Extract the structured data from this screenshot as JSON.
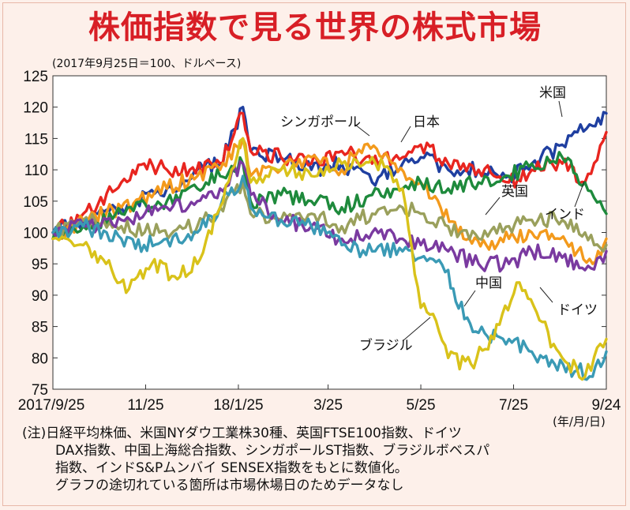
{
  "title": "株価指数で見る世界の株式市場",
  "subtitle": "(2017年9月25日＝100、ドルベース)",
  "unit_label": "(年/月/日)",
  "notes": [
    "(注)日経平均株価、米国NYダウ工業株30種、英国FTSE100指数、ドイツ",
    "DAX指数、中国上海総合指数、シンガポールST指数、ブラジルボベスパ",
    "指数、インドS&Pムンバイ SENSEX指数をもとに数値化。",
    "グラフの途切れている箇所は市場休場日のためデータなし"
  ],
  "chart_data": {
    "type": "line",
    "title": "株価指数で見る世界の株式市場",
    "xlabel": "",
    "ylabel": "",
    "ylim": [
      75,
      125
    ],
    "yticks": [
      75,
      80,
      85,
      90,
      95,
      100,
      105,
      110,
      115,
      120,
      125
    ],
    "x_tick_labels": [
      "2017/9/25",
      "11/25",
      "18/1/25",
      "3/25",
      "5/25",
      "7/25",
      "9/24"
    ],
    "x_tick_days": [
      0,
      61,
      122,
      181,
      242,
      303,
      364
    ],
    "x_range_days": [
      0,
      364
    ],
    "series": [
      {
        "name": "米国",
        "color": "#1f3fa0",
        "x": [
          0,
          20,
          45,
          75,
          85,
          95,
          110,
          125,
          130,
          150,
          170,
          190,
          210,
          230,
          242,
          260,
          280,
          300,
          315,
          335,
          345,
          355,
          364
        ],
        "values": [
          100,
          102,
          104,
          107,
          108,
          110,
          111,
          120,
          113,
          112,
          110,
          111,
          108,
          111,
          112,
          110,
          110,
          109,
          111,
          114,
          116,
          117,
          119
        ]
      },
      {
        "name": "日本",
        "color": "#e8251f",
        "x": [
          0,
          20,
          45,
          60,
          75,
          90,
          110,
          125,
          130,
          150,
          170,
          190,
          210,
          230,
          242,
          260,
          280,
          300,
          315,
          335,
          350,
          364
        ],
        "values": [
          100,
          103,
          108,
          111,
          110,
          110,
          111,
          119,
          113,
          112,
          111,
          113,
          111,
          112,
          114,
          111,
          110,
          108,
          110,
          111,
          108,
          116
        ]
      },
      {
        "name": "シンガポール",
        "color": "#f39a1c",
        "x": [
          0,
          20,
          45,
          75,
          95,
          110,
          125,
          130,
          150,
          170,
          190,
          205,
          225,
          242,
          255,
          270,
          285,
          300,
          315,
          330,
          345,
          355,
          364
        ],
        "values": [
          99,
          102,
          104,
          107,
          109,
          110,
          115,
          109,
          110,
          112,
          110,
          114,
          111,
          108,
          104,
          99,
          98,
          99,
          100,
          99,
          97,
          95,
          99
        ]
      },
      {
        "name": "インド",
        "color": "#1e8a3c",
        "x": [
          0,
          20,
          45,
          75,
          95,
          110,
          125,
          130,
          150,
          170,
          190,
          210,
          230,
          242,
          260,
          280,
          300,
          315,
          335,
          350,
          364
        ],
        "values": [
          99,
          101,
          103,
          105,
          107,
          109,
          111,
          105,
          106,
          105,
          104,
          106,
          107,
          108,
          107,
          108,
          109,
          111,
          112,
          108,
          103
        ]
      },
      {
        "name": "英国",
        "color": "#9aa05c",
        "x": [
          0,
          20,
          45,
          70,
          95,
          110,
          125,
          130,
          150,
          170,
          190,
          210,
          230,
          242,
          260,
          280,
          300,
          315,
          335,
          350,
          364
        ],
        "values": [
          100,
          102,
          101,
          100,
          101,
          104,
          108,
          103,
          102,
          103,
          101,
          103,
          104,
          103,
          101,
          99,
          101,
          102,
          102,
          100,
          98
        ]
      },
      {
        "name": "ドイツ",
        "color": "#7a3aa0",
        "x": [
          0,
          20,
          45,
          75,
          95,
          110,
          125,
          130,
          150,
          170,
          190,
          210,
          230,
          242,
          260,
          280,
          300,
          315,
          335,
          350,
          364
        ],
        "values": [
          100,
          101,
          102,
          104,
          105,
          107,
          111,
          106,
          102,
          101,
          99,
          100,
          99,
          98,
          97,
          95,
          95,
          97,
          96,
          94,
          97
        ]
      },
      {
        "name": "中国",
        "color": "#3a9ab5",
        "x": [
          0,
          20,
          45,
          60,
          75,
          95,
          110,
          125,
          130,
          150,
          170,
          190,
          210,
          230,
          242,
          260,
          265,
          280,
          300,
          315,
          330,
          345,
          355,
          364
        ],
        "values": [
          100,
          101,
          99,
          98,
          99,
          100,
          104,
          109,
          104,
          102,
          101,
          98,
          97,
          97,
          96,
          94,
          89,
          84,
          83,
          81,
          79,
          78,
          77,
          81
        ]
      },
      {
        "name": "ブラジル",
        "color": "#d9c21a",
        "x": [
          0,
          20,
          35,
          50,
          65,
          80,
          95,
          110,
          125,
          130,
          150,
          170,
          190,
          210,
          230,
          242,
          250,
          260,
          275,
          290,
          305,
          320,
          335,
          350,
          364
        ],
        "values": [
          99,
          98,
          95,
          91,
          95,
          93,
          95,
          104,
          115,
          108,
          110,
          109,
          111,
          112,
          107,
          88,
          87,
          80,
          79,
          83,
          92,
          86,
          80,
          77,
          83
        ]
      }
    ]
  }
}
